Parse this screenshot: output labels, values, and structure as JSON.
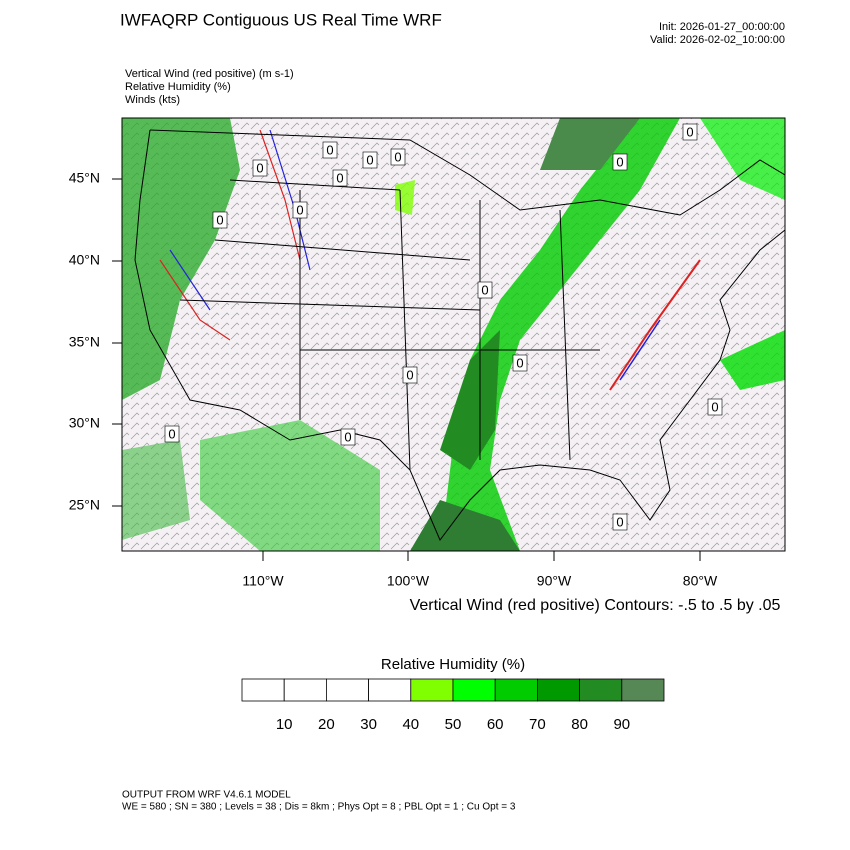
{
  "header": {
    "title": "IWFAQRP Contiguous US Real Time WRF",
    "init": "Init: 2026-01-27_00:00:00",
    "valid": "Valid: 2026-02-02_10:00:00"
  },
  "fields": [
    "Vertical Wind (red positive)   (m s-1)",
    "Relative Humidity   (%)",
    "Winds   (kts)"
  ],
  "map": {
    "lat_labels": [
      "45°N",
      "40°N",
      "35°N",
      "30°N",
      "25°N"
    ],
    "lon_labels": [
      "110°W",
      "100°W",
      "90°W",
      "80°W"
    ],
    "contour_labels": [
      "0",
      "0",
      "0",
      "0",
      "0",
      "0",
      "0",
      "0",
      "0",
      "0",
      "0",
      "0",
      "0",
      "0",
      "0",
      "0"
    ],
    "contour_note": "Vertical Wind (red positive) Contours: -.5 to .5 by .05"
  },
  "colorbar": {
    "title": "Relative Humidity  (%)",
    "colors": [
      "#ffffff",
      "#ffffff",
      "#ffffff",
      "#ffffff",
      "#80ff00",
      "#00ff00",
      "#00cc00",
      "#009900",
      "#228b22",
      "#558855"
    ],
    "ticks": [
      10,
      20,
      30,
      40,
      50,
      60,
      70,
      80,
      90
    ]
  },
  "footer": {
    "line1": "OUTPUT FROM WRF V4.6.1 MODEL",
    "line2": "WE = 580 ; SN = 380 ; Levels = 38 ; Dis = 8km ; Phys Opt = 8 ; PBL Opt = 1 ; Cu Opt = 3"
  }
}
